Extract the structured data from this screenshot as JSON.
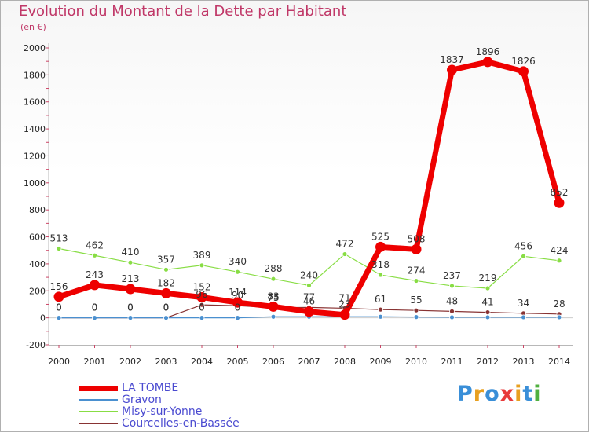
{
  "title": "Evolution du Montant de la Dette par Habitant",
  "subtitle": "(en €)",
  "logo": {
    "letters": [
      "P",
      "r",
      "o",
      "x",
      "i",
      "t",
      "i"
    ],
    "colors": [
      "#3a8fd8",
      "#e8a020",
      "#3a8fd8",
      "#e83a3a",
      "#e8a020",
      "#3a8fd8",
      "#50b040"
    ]
  },
  "chart_data": {
    "type": "line",
    "title": "Evolution du Montant de la Dette par Habitant",
    "ylabel": "(en €)",
    "x": [
      "2000",
      "2001",
      "2002",
      "2003",
      "2004",
      "2005",
      "2006",
      "2007",
      "2008",
      "2009",
      "2010",
      "2011",
      "2012",
      "2013",
      "2014"
    ],
    "ylim": [
      -200,
      2000
    ],
    "yticks": [
      "-200",
      "0",
      "200",
      "400",
      "600",
      "800",
      "1000",
      "1200",
      "1400",
      "1600",
      "1800",
      "2000"
    ],
    "grid": false,
    "legend_position": "bottom-left",
    "series": [
      {
        "name": "LA TOMBE",
        "color": "#ee0000",
        "values": [
          156,
          243,
          213,
          182,
          152,
          114,
          83,
          46,
          23,
          525,
          508,
          1837,
          1896,
          1826,
          852
        ],
        "labels": [
          "156",
          "243",
          "213",
          "182",
          "152",
          "114",
          "83",
          "46",
          "23",
          "525",
          "508",
          "1837",
          "1896",
          "1826",
          "852"
        ]
      },
      {
        "name": "Gravon",
        "color": "#4a90d0",
        "values": [
          0,
          0,
          0,
          0,
          0,
          0,
          8,
          8,
          8,
          8,
          6,
          4,
          4,
          4,
          4
        ],
        "labels": [
          "0",
          "0",
          "0",
          "0",
          "0",
          "0",
          "",
          "",
          "",
          "",
          "",
          "",
          "",
          "",
          ""
        ]
      },
      {
        "name": "Misy-sur-Yonne",
        "color": "#88dd44",
        "values": [
          513,
          462,
          410,
          357,
          389,
          340,
          288,
          240,
          472,
          318,
          274,
          237,
          219,
          456,
          424
        ],
        "labels": [
          "513",
          "462",
          "410",
          "357",
          "389",
          "340",
          "288",
          "240",
          "472",
          "318",
          "274",
          "237",
          "219",
          "456",
          "424"
        ]
      },
      {
        "name": "Courcelles-en-Bassée",
        "color": "#883333",
        "values": [
          0,
          0,
          0,
          0,
          96,
          90,
          75,
          77,
          71,
          61,
          55,
          48,
          41,
          34,
          28
        ],
        "labels": [
          "0",
          "0",
          "0",
          "0",
          "96",
          "90",
          "75",
          "77",
          "71",
          "61",
          "55",
          "48",
          "41",
          "34",
          "28"
        ]
      }
    ]
  }
}
